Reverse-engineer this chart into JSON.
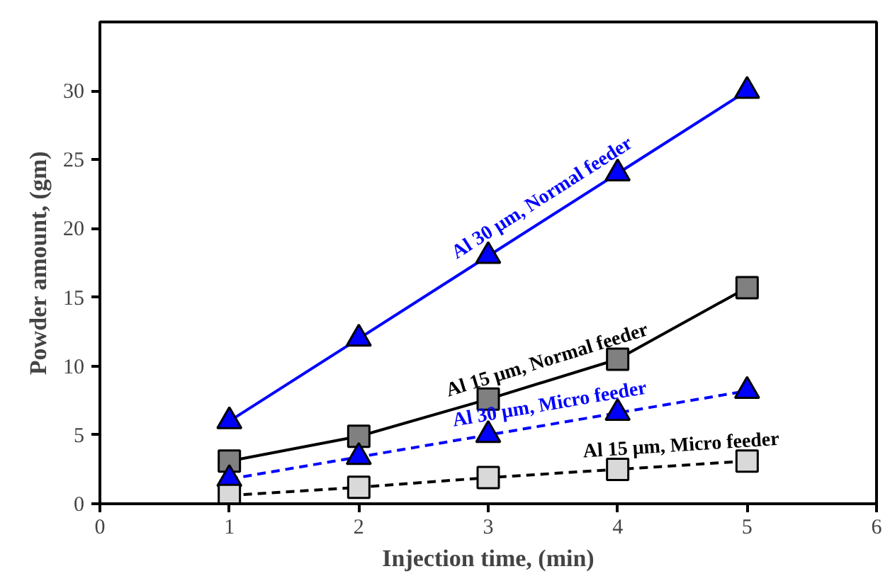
{
  "chart_data": {
    "type": "line",
    "xlabel": "Injection time, (min)",
    "ylabel": "Powder amount, (gm)",
    "x": [
      1,
      2,
      3,
      4,
      5
    ],
    "series": [
      {
        "name": "Al 30 μm, Normal feeder",
        "color": "#0000ff",
        "marker": "triangle",
        "line_style": "solid",
        "values": [
          6,
          12,
          18,
          24,
          30
        ]
      },
      {
        "name": "Al 15 μm, Normal feeder",
        "color": "#000000",
        "colors": [
          "#808080",
          "#808080",
          "#808080",
          "#808080",
          "#808080"
        ],
        "marker": "square",
        "line_style": "solid",
        "values": [
          3.1,
          4.9,
          7.6,
          10.5,
          15.7
        ]
      },
      {
        "name": "Al 30 μm, Micro feeder",
        "color": "#0000ff",
        "marker": "triangle",
        "line_style": "dashed",
        "values": [
          1.8,
          3.4,
          5.0,
          6.6,
          8.2
        ]
      },
      {
        "name": "Al 15 μm, Micro feeder",
        "color": "#000000",
        "colors": [
          "#d9d9d9",
          "#d9d9d9",
          "#d9d9d9",
          "#d9d9d9",
          "#d9d9d9"
        ],
        "marker": "square",
        "line_style": "dashed",
        "values": [
          0.6,
          1.2,
          1.9,
          2.5,
          3.1
        ]
      }
    ],
    "xlim": [
      0,
      6
    ],
    "xticks": [
      0,
      1,
      2,
      3,
      4,
      5,
      6
    ],
    "ylim": [
      0,
      35
    ],
    "yticks": [
      0,
      5,
      10,
      15,
      20,
      25,
      30
    ],
    "grid": false
  }
}
